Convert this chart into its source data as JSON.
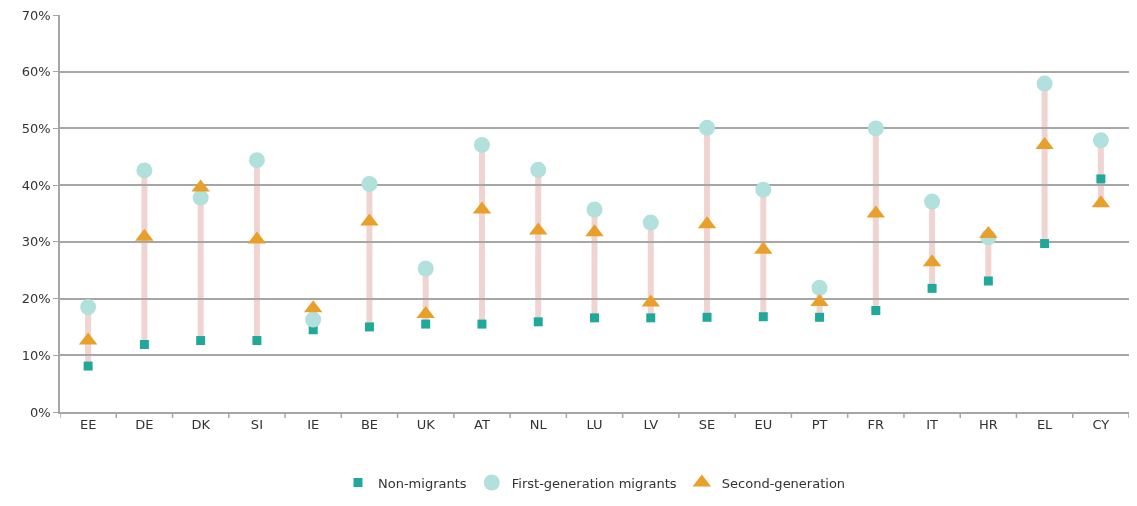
{
  "chart_data": {
    "type": "scatter",
    "categories": [
      "EE",
      "DE",
      "DK",
      "SI",
      "IE",
      "BE",
      "UK",
      "AT",
      "NL",
      "LU",
      "LV",
      "SE",
      "EU",
      "PT",
      "FR",
      "IT",
      "HR",
      "EL",
      "CY"
    ],
    "series": [
      {
        "name": "Non-migrants",
        "color": "#20a99a",
        "marker": "square",
        "values": [
          8.1,
          11.9,
          12.6,
          12.6,
          14.5,
          15.0,
          15.5,
          15.5,
          15.9,
          16.6,
          16.6,
          16.7,
          16.8,
          16.7,
          17.9,
          21.8,
          23.1,
          29.7,
          41.1
        ]
      },
      {
        "name": "First-generation migrants",
        "color": "#b2e0dc",
        "marker": "circle",
        "values": [
          18.5,
          42.6,
          37.8,
          44.4,
          16.3,
          40.2,
          25.3,
          47.1,
          42.7,
          35.7,
          33.4,
          50.1,
          39.2,
          21.9,
          50.0,
          37.1,
          30.8,
          57.9,
          47.9
        ]
      },
      {
        "name": "Second-generation",
        "color": "#e8a02a",
        "marker": "triangle",
        "values": [
          12.6,
          30.9,
          39.6,
          30.4,
          18.3,
          33.6,
          17.3,
          35.7,
          32.0,
          31.7,
          19.3,
          33.1,
          28.6,
          19.4,
          35.0,
          26.4,
          31.4,
          47.1,
          36.8
        ]
      }
    ],
    "ylim": [
      0,
      70
    ],
    "yticks": [
      {
        "value": 0,
        "label": "0%"
      },
      {
        "value": 10,
        "label": "10%"
      },
      {
        "value": 20,
        "label": "20%"
      },
      {
        "value": 30,
        "label": "30%"
      },
      {
        "value": 40,
        "label": "40%"
      },
      {
        "value": 50,
        "label": "50%"
      },
      {
        "value": 60,
        "label": "60%"
      },
      {
        "value": 70,
        "label": "70%"
      }
    ],
    "grid": "y",
    "legend": "bottom"
  }
}
